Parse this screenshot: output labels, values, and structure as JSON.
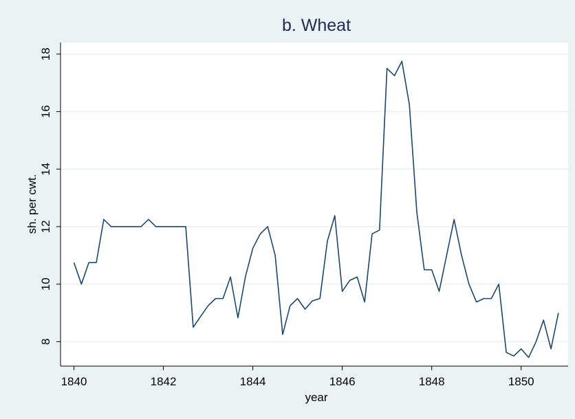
{
  "chart_data": {
    "type": "line",
    "title": "b. Wheat",
    "x_label": "year",
    "y_label": "sh. per cwt.",
    "x": [
      1840,
      1840.167,
      1840.333,
      1840.5,
      1840.667,
      1840.833,
      1841,
      1841.167,
      1841.333,
      1841.5,
      1841.667,
      1841.833,
      1842,
      1842.167,
      1842.333,
      1842.5,
      1842.667,
      1842.833,
      1843,
      1843.167,
      1843.333,
      1843.5,
      1843.667,
      1843.833,
      1844,
      1844.167,
      1844.333,
      1844.5,
      1844.667,
      1844.833,
      1845,
      1845.167,
      1845.333,
      1845.5,
      1845.667,
      1845.833,
      1846,
      1846.167,
      1846.333,
      1846.5,
      1846.667,
      1846.833,
      1847,
      1847.167,
      1847.333,
      1847.5,
      1847.667,
      1847.833,
      1848,
      1848.167,
      1848.333,
      1848.5,
      1848.667,
      1848.833,
      1849,
      1849.167,
      1849.333,
      1849.5,
      1849.667,
      1849.833,
      1850,
      1850.167,
      1850.333,
      1850.5,
      1850.667,
      1850.833
    ],
    "series": [
      {
        "name": "wheat",
        "color": "#1a476f",
        "values": [
          10.75,
          10.0,
          10.75,
          10.75,
          12.25,
          12.0,
          12.0,
          12.0,
          12.0,
          12.0,
          12.25,
          12.0,
          12.0,
          12.0,
          12.0,
          12.0,
          8.5,
          8.88,
          9.25,
          9.5,
          9.5,
          10.25,
          8.83,
          10.25,
          11.25,
          11.75,
          12.0,
          11.0,
          8.25,
          9.25,
          9.5,
          9.13,
          9.42,
          9.5,
          11.5,
          12.38,
          9.75,
          10.13,
          10.25,
          9.38,
          11.75,
          11.88,
          17.5,
          17.25,
          17.75,
          16.25,
          12.5,
          10.5,
          10.5,
          9.75,
          11.0,
          12.25,
          11.0,
          10.0,
          9.38,
          9.5,
          9.5,
          10.0,
          7.63,
          7.5,
          7.75,
          7.45,
          8.0,
          8.75,
          7.75,
          9.0
        ]
      }
    ],
    "xlim": [
      1839.7,
      1851.05
    ],
    "ylim": [
      7.15,
      18.4
    ],
    "xticks": [
      1840,
      1842,
      1844,
      1846,
      1848,
      1850
    ],
    "yticks": [
      8,
      10,
      12,
      14,
      16,
      18
    ],
    "grid": true
  }
}
